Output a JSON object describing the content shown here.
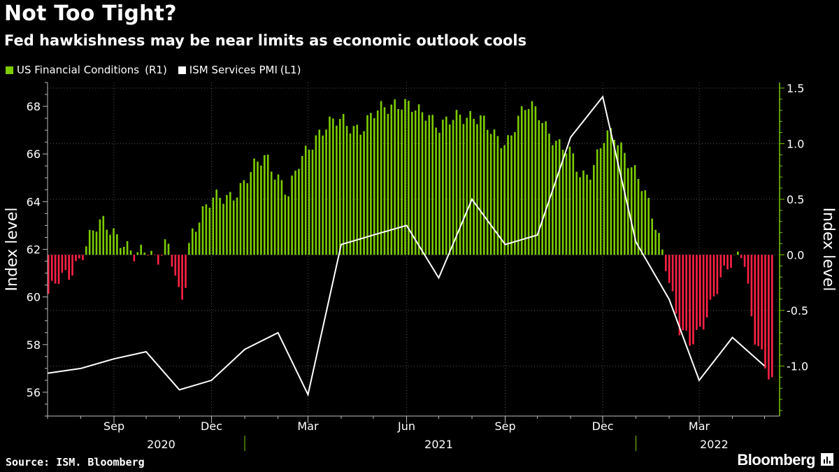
{
  "title": "Not Too Tight?",
  "subtitle": "Fed hawkishness may be near limits as economic outlook cools",
  "source": "Source: ISM. Bloomberg",
  "brand": "Bloomberg",
  "colors": {
    "positive": "#7ccc00",
    "negative": "#ff2245",
    "line": "#ffffff",
    "right_axis": "#7ccc00"
  },
  "chart_data": {
    "type": "bar",
    "xlabel": "",
    "x_range": [
      "2020-07-01",
      "2022-05-15"
    ],
    "month_ticks": [
      {
        "date": "2020-09-01",
        "label": "Sep"
      },
      {
        "date": "2020-12-01",
        "label": "Dec"
      },
      {
        "date": "2021-03-01",
        "label": "Mar"
      },
      {
        "date": "2021-06-01",
        "label": "Jun"
      },
      {
        "date": "2021-09-01",
        "label": "Sep"
      },
      {
        "date": "2021-12-01",
        "label": "Dec"
      },
      {
        "date": "2022-03-01",
        "label": "Mar"
      }
    ],
    "year_labels": [
      {
        "label": "2020",
        "center": "2020-10-15"
      },
      {
        "label": "2021",
        "center": "2021-07-01"
      },
      {
        "label": "2022",
        "center": "2022-03-15"
      }
    ],
    "year_separators": [
      "2021-01-01",
      "2022-01-01"
    ],
    "left_axis": {
      "label": "Index level",
      "range": [
        55,
        69
      ],
      "ticks": [
        56,
        58,
        60,
        62,
        64,
        66,
        68
      ]
    },
    "right_axis": {
      "label": "Index level",
      "range": [
        -1.45,
        1.55
      ],
      "ticks": [
        -1.0,
        -0.5,
        0.0,
        0.5,
        1.0,
        1.5
      ],
      "tick_labels": [
        "-1.0",
        "-0.5",
        "0.0",
        "0.5",
        "1.0",
        "1.5"
      ]
    },
    "series": [
      {
        "name": "US Financial Conditions",
        "axis_label": "(R1)",
        "axis": "right",
        "type": "bar",
        "points": [
          [
            "2020-07-01",
            -0.35
          ],
          [
            "2020-07-10",
            -0.25
          ],
          [
            "2020-07-20",
            -0.18
          ],
          [
            "2020-08-01",
            0.02
          ],
          [
            "2020-08-10",
            0.18
          ],
          [
            "2020-08-20",
            0.28
          ],
          [
            "2020-09-01",
            0.22
          ],
          [
            "2020-09-10",
            0.1
          ],
          [
            "2020-09-20",
            -0.05
          ],
          [
            "2020-10-01",
            0.06
          ],
          [
            "2020-10-10",
            -0.02
          ],
          [
            "2020-10-20",
            0.12
          ],
          [
            "2020-11-01",
            -0.45
          ],
          [
            "2020-11-05",
            -0.35
          ],
          [
            "2020-11-10",
            0.18
          ],
          [
            "2020-11-20",
            0.38
          ],
          [
            "2020-12-01",
            0.48
          ],
          [
            "2020-12-10",
            0.5
          ],
          [
            "2020-12-20",
            0.56
          ],
          [
            "2021-01-01",
            0.66
          ],
          [
            "2021-01-10",
            0.78
          ],
          [
            "2021-01-20",
            0.9
          ],
          [
            "2021-02-01",
            0.7
          ],
          [
            "2021-02-10",
            0.52
          ],
          [
            "2021-02-20",
            0.82
          ],
          [
            "2021-03-01",
            1.0
          ],
          [
            "2021-03-10",
            1.1
          ],
          [
            "2021-03-20",
            1.15
          ],
          [
            "2021-04-01",
            1.22
          ],
          [
            "2021-04-10",
            1.18
          ],
          [
            "2021-04-20",
            1.12
          ],
          [
            "2021-05-01",
            1.25
          ],
          [
            "2021-05-10",
            1.35
          ],
          [
            "2021-05-20",
            1.38
          ],
          [
            "2021-06-01",
            1.32
          ],
          [
            "2021-06-10",
            1.28
          ],
          [
            "2021-06-20",
            1.3
          ],
          [
            "2021-07-01",
            1.15
          ],
          [
            "2021-07-10",
            1.18
          ],
          [
            "2021-07-20",
            1.25
          ],
          [
            "2021-08-01",
            1.28
          ],
          [
            "2021-08-10",
            1.2
          ],
          [
            "2021-08-20",
            1.05
          ],
          [
            "2021-09-01",
            1.02
          ],
          [
            "2021-09-10",
            1.2
          ],
          [
            "2021-09-20",
            1.32
          ],
          [
            "2021-10-01",
            1.28
          ],
          [
            "2021-10-10",
            1.15
          ],
          [
            "2021-10-20",
            0.98
          ],
          [
            "2021-11-01",
            0.88
          ],
          [
            "2021-11-10",
            0.72
          ],
          [
            "2021-11-20",
            0.78
          ],
          [
            "2021-12-01",
            1.02
          ],
          [
            "2021-12-10",
            1.08
          ],
          [
            "2021-12-20",
            0.95
          ],
          [
            "2022-01-01",
            0.72
          ],
          [
            "2022-01-10",
            0.48
          ],
          [
            "2022-01-20",
            0.22
          ],
          [
            "2022-01-28",
            -0.05
          ],
          [
            "2022-02-05",
            -0.45
          ],
          [
            "2022-02-10",
            -0.7
          ],
          [
            "2022-02-20",
            -0.82
          ],
          [
            "2022-03-01",
            -0.65
          ],
          [
            "2022-03-10",
            -0.45
          ],
          [
            "2022-03-20",
            -0.25
          ],
          [
            "2022-04-01",
            -0.05
          ],
          [
            "2022-04-10",
            0.08
          ],
          [
            "2022-04-15",
            -0.3
          ],
          [
            "2022-04-20",
            -0.72
          ],
          [
            "2022-05-01",
            -1.05
          ],
          [
            "2022-05-10",
            -1.18
          ]
        ]
      },
      {
        "name": "ISM Services PMI",
        "axis_label": "(L1)",
        "axis": "left",
        "type": "line",
        "points": [
          [
            "2020-07-01",
            56.8
          ],
          [
            "2020-08-01",
            57.0
          ],
          [
            "2020-09-01",
            57.4
          ],
          [
            "2020-10-01",
            57.7
          ],
          [
            "2020-11-01",
            56.1
          ],
          [
            "2020-12-01",
            56.5
          ],
          [
            "2021-01-01",
            57.8
          ],
          [
            "2021-02-01",
            58.5
          ],
          [
            "2021-03-01",
            55.9
          ],
          [
            "2021-04-01",
            62.2
          ],
          [
            "2021-05-01",
            62.6
          ],
          [
            "2021-06-01",
            63.0
          ],
          [
            "2021-07-01",
            60.8
          ],
          [
            "2021-08-01",
            64.1
          ],
          [
            "2021-09-01",
            62.2
          ],
          [
            "2021-10-01",
            62.6
          ],
          [
            "2021-11-01",
            66.7
          ],
          [
            "2021-12-01",
            68.4
          ],
          [
            "2022-01-01",
            62.3
          ],
          [
            "2022-02-01",
            59.9
          ],
          [
            "2022-03-01",
            56.5
          ],
          [
            "2022-04-01",
            58.3
          ],
          [
            "2022-05-01",
            57.1
          ]
        ]
      }
    ]
  }
}
